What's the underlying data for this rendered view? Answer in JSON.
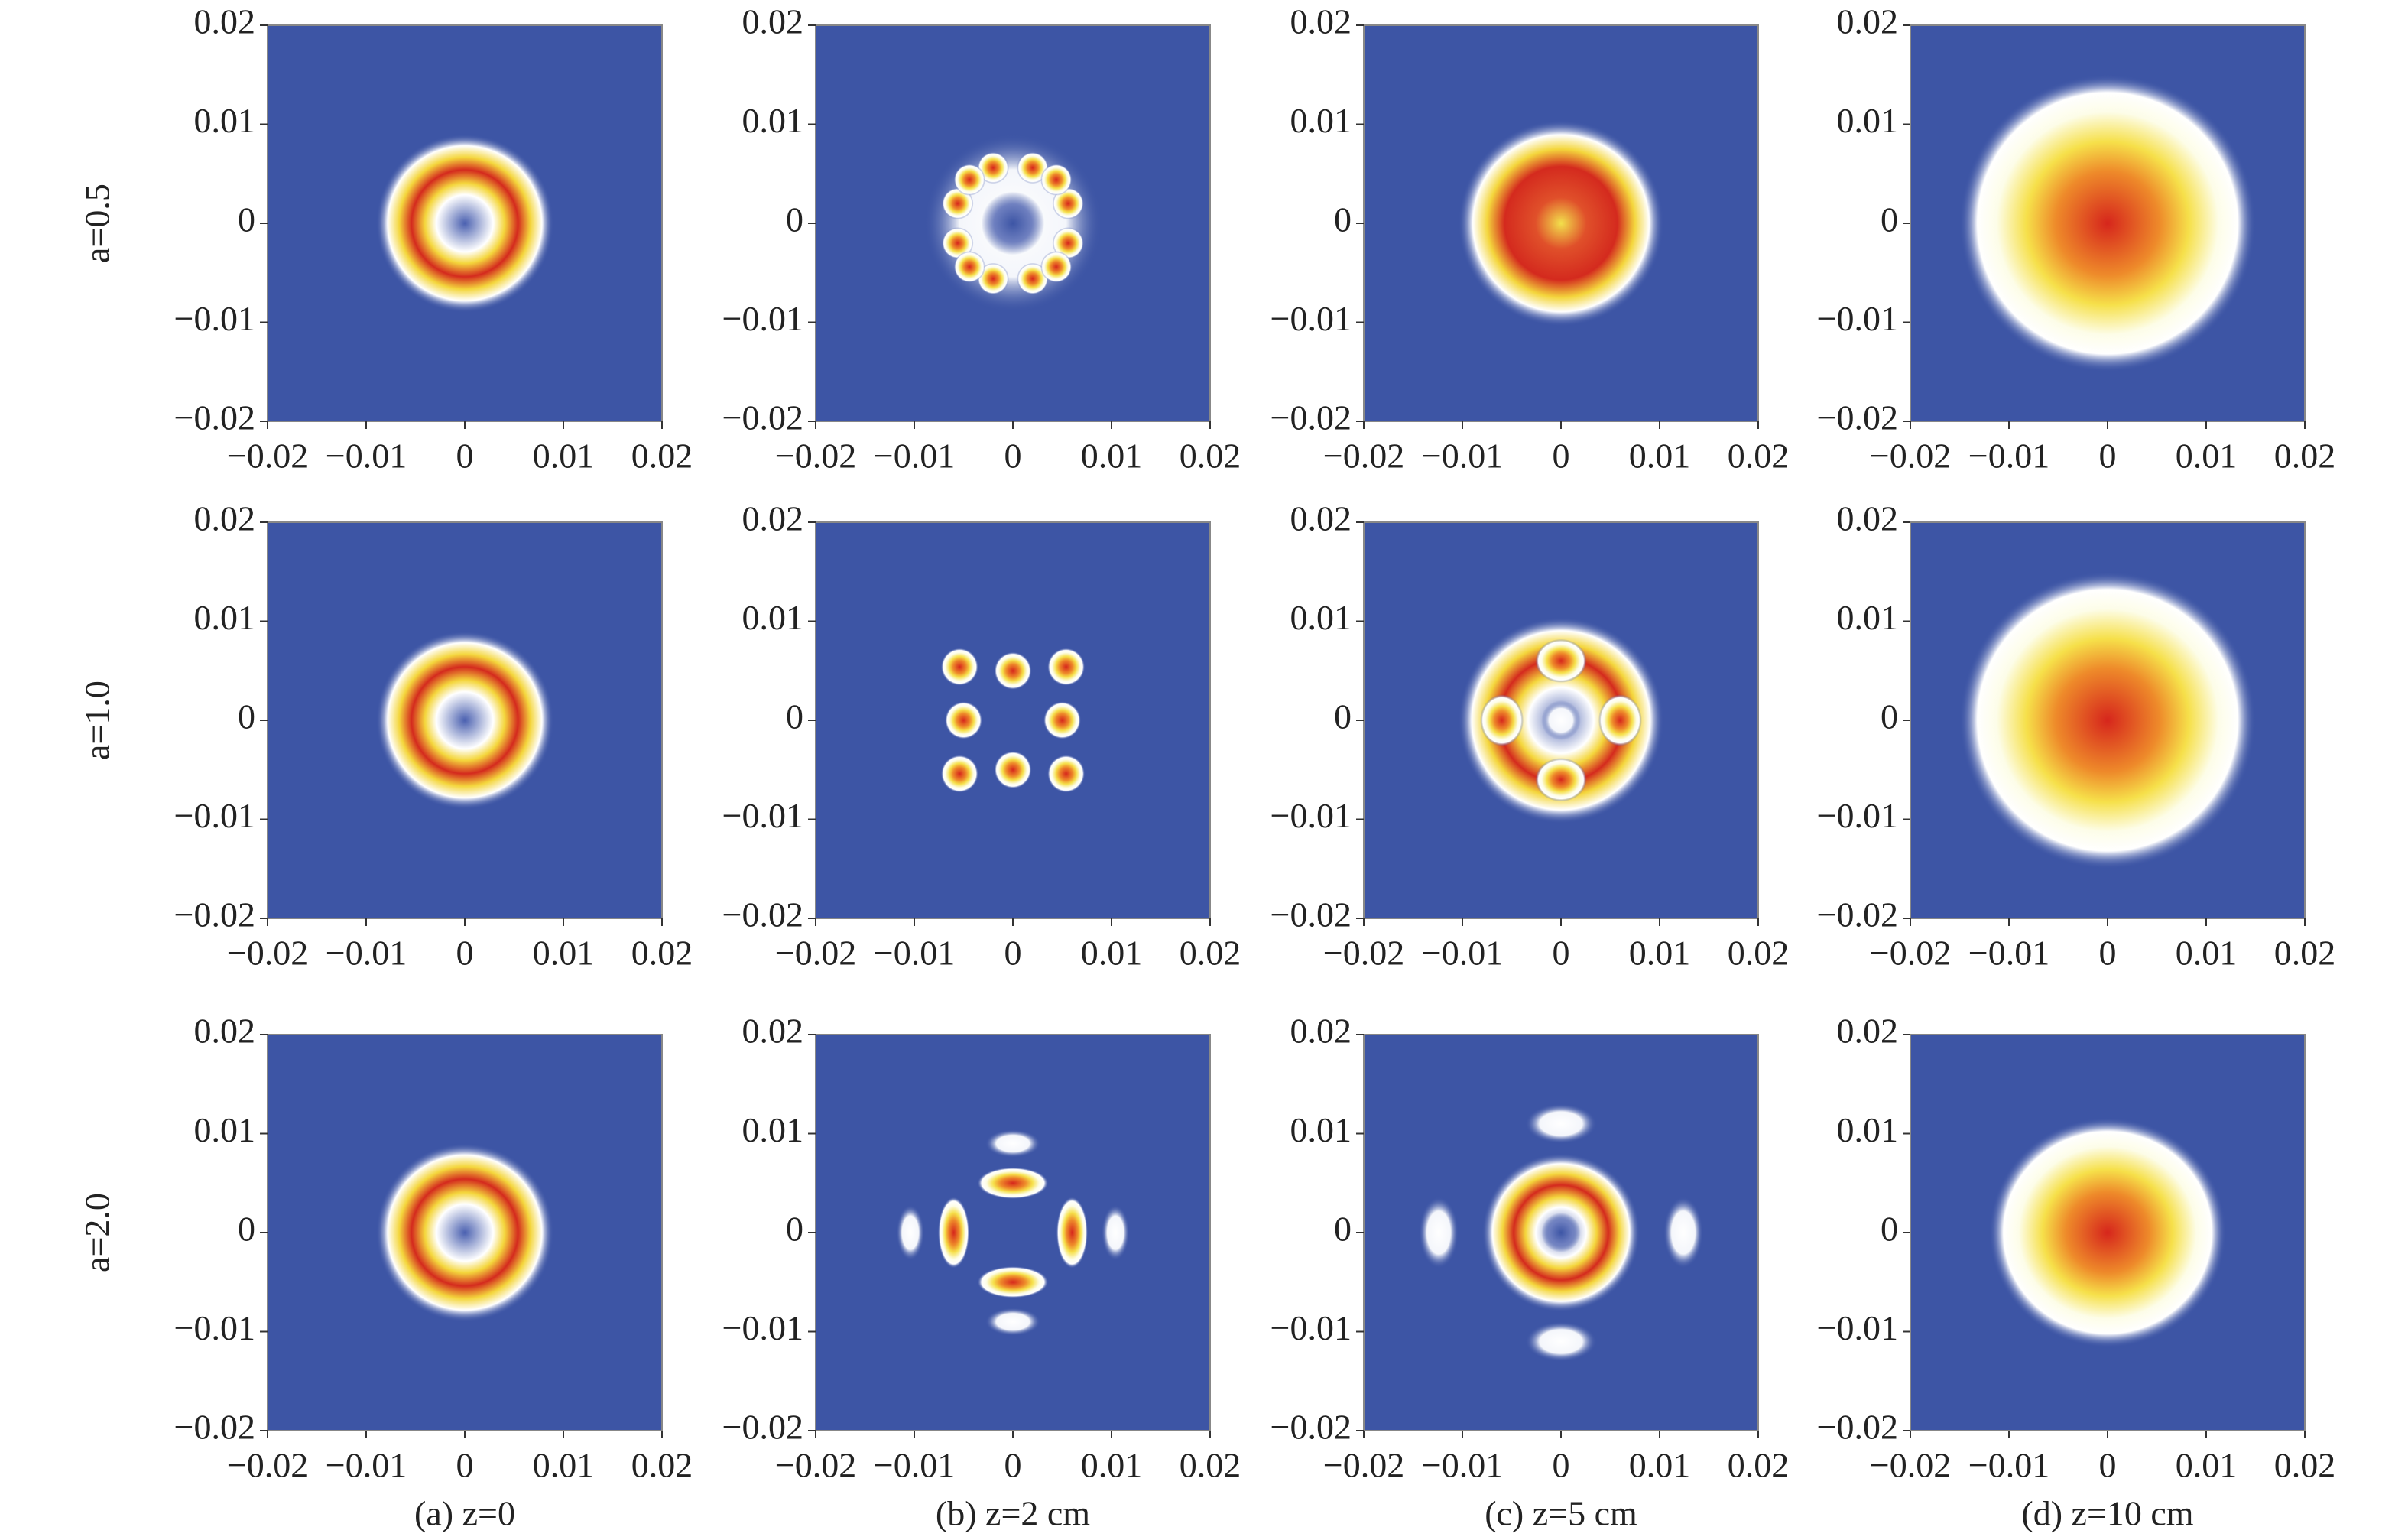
{
  "chart_data": {
    "type": "heatmap-grid",
    "xlim": [
      -0.02,
      0.02
    ],
    "ylim": [
      -0.02,
      0.02
    ],
    "xticks": [
      {
        "value": -0.02,
        "label": "−0.02"
      },
      {
        "value": -0.01,
        "label": "−0.01"
      },
      0,
      0.01,
      0.02
    ],
    "yticks": [
      {
        "value": -0.02,
        "label": "−0.02"
      },
      {
        "value": -0.01,
        "label": "−0.01"
      },
      0,
      0.01,
      0.02
    ],
    "row_labels": [
      "a=0.5",
      "a=1.0",
      "a=2.0"
    ],
    "column_captions": [
      "(a) z=0",
      "(b) z=2 cm",
      "(c) z=5 cm",
      "(d) z=10 cm"
    ]
  }
}
